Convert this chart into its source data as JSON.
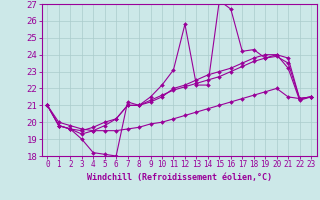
{
  "title": "",
  "xlabel": "Windchill (Refroidissement éolien,°C)",
  "ylabel": "",
  "bg_color": "#cce8e8",
  "line_color": "#990099",
  "grid_color": "#aacccc",
  "xlim": [
    -0.5,
    23.5
  ],
  "ylim": [
    18,
    27
  ],
  "xticks": [
    0,
    1,
    2,
    3,
    4,
    5,
    6,
    7,
    8,
    9,
    10,
    11,
    12,
    13,
    14,
    15,
    16,
    17,
    18,
    19,
    20,
    21,
    22,
    23
  ],
  "yticks": [
    18,
    19,
    20,
    21,
    22,
    23,
    24,
    25,
    26,
    27
  ],
  "series": [
    [
      21.0,
      19.8,
      19.6,
      19.0,
      18.2,
      18.1,
      18.0,
      21.2,
      21.0,
      21.5,
      22.2,
      23.1,
      25.8,
      22.2,
      22.2,
      27.2,
      26.7,
      24.2,
      24.3,
      23.8,
      24.0,
      23.2,
      21.3,
      21.5
    ],
    [
      21.0,
      19.8,
      19.6,
      19.3,
      19.5,
      19.8,
      20.2,
      21.0,
      21.0,
      21.2,
      21.5,
      22.0,
      22.2,
      22.5,
      22.8,
      23.0,
      23.2,
      23.5,
      23.8,
      24.0,
      24.0,
      23.8,
      21.4,
      21.5
    ],
    [
      21.0,
      19.8,
      19.6,
      19.5,
      19.7,
      20.0,
      20.2,
      21.0,
      21.0,
      21.3,
      21.6,
      21.9,
      22.1,
      22.3,
      22.5,
      22.7,
      23.0,
      23.3,
      23.6,
      23.8,
      23.9,
      23.5,
      21.4,
      21.5
    ],
    [
      21.0,
      20.0,
      19.8,
      19.6,
      19.5,
      19.5,
      19.5,
      19.6,
      19.7,
      19.9,
      20.0,
      20.2,
      20.4,
      20.6,
      20.8,
      21.0,
      21.2,
      21.4,
      21.6,
      21.8,
      22.0,
      21.5,
      21.4,
      21.5
    ]
  ]
}
